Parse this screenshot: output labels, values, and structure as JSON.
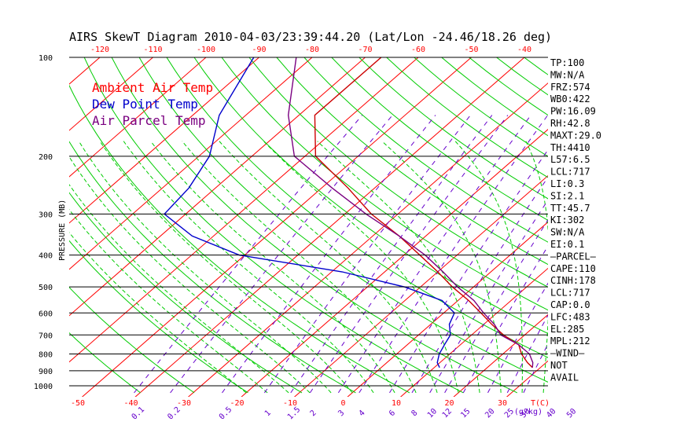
{
  "chart_data": {
    "type": "skewt",
    "title": "AIRS SkewT Diagram 2010-04-03/23:39:44.20 (Lat/Lon -24.46/18.26 deg)",
    "ylabel": "PRESSURE (MB)",
    "x_unit": "T(C)",
    "mixing_ratio_unit": "(g/kg)",
    "pressure_levels": [
      100,
      200,
      300,
      400,
      500,
      600,
      700,
      800,
      900,
      1000
    ],
    "ylim": [
      1000,
      100
    ],
    "top_temp_ticks": [
      -120,
      -110,
      -100,
      -90,
      -80,
      -70,
      -60,
      -50,
      -40
    ],
    "bottom_temp_ticks": [
      -50,
      -40,
      -30,
      -20,
      -10,
      0,
      10,
      20,
      30
    ],
    "mixing_ratio_labels": [
      "0.1",
      "0.2",
      "0.5",
      "1",
      "1.5",
      "2",
      "3",
      "4",
      "6",
      "8",
      "10",
      "12",
      "15",
      "20",
      "25",
      "30",
      "40",
      "50"
    ],
    "mixing_ratio_values": [
      0.1,
      0.2,
      0.5,
      1,
      1.5,
      2,
      3,
      4,
      6,
      8,
      10,
      12,
      15,
      20,
      25,
      30,
      40,
      50
    ],
    "legend": [
      {
        "name": "Ambient Air Temp",
        "color": "#ff0000"
      },
      {
        "name": "Dew Point Temp",
        "color": "#0000cc"
      },
      {
        "name": "Air Parcel Temp",
        "color": "#7a0080"
      }
    ],
    "colors": {
      "isotherm": "#ff0000",
      "dry_adiabat": "#00cc00",
      "moist_adiabat": "#00cc00",
      "mixing_ratio": "#6600cc",
      "pressure_line": "#000000"
    },
    "series": [
      {
        "name": "Ambient Air Temp",
        "color": "#cc0000",
        "points": [
          [
            100,
            -67
          ],
          [
            150,
            -67
          ],
          [
            200,
            -58
          ],
          [
            250,
            -45
          ],
          [
            300,
            -35
          ],
          [
            350,
            -25
          ],
          [
            400,
            -17
          ],
          [
            450,
            -10
          ],
          [
            500,
            -4
          ],
          [
            550,
            2
          ],
          [
            600,
            7
          ],
          [
            650,
            11.5
          ],
          [
            700,
            16
          ],
          [
            750,
            21
          ],
          [
            800,
            23.5
          ],
          [
            850,
            26.5
          ],
          [
            880,
            28.5
          ]
        ]
      },
      {
        "name": "Dew Point Temp",
        "color": "#0000cc",
        "points": [
          [
            100,
            -91
          ],
          [
            150,
            -85
          ],
          [
            200,
            -78
          ],
          [
            250,
            -75
          ],
          [
            300,
            -74
          ],
          [
            350,
            -64
          ],
          [
            400,
            -51
          ],
          [
            450,
            -28
          ],
          [
            500,
            -13
          ],
          [
            550,
            -3
          ],
          [
            600,
            2
          ],
          [
            650,
            3.5
          ],
          [
            700,
            6
          ],
          [
            750,
            7
          ],
          [
            800,
            8
          ],
          [
            850,
            9.5
          ],
          [
            880,
            11
          ]
        ]
      },
      {
        "name": "Air Parcel Temp",
        "color": "#7a0080",
        "points": [
          [
            100,
            -83
          ],
          [
            150,
            -72
          ],
          [
            200,
            -62
          ],
          [
            250,
            -48
          ],
          [
            300,
            -36
          ],
          [
            350,
            -25
          ],
          [
            400,
            -16
          ],
          [
            450,
            -9
          ],
          [
            500,
            -3
          ],
          [
            550,
            3
          ],
          [
            600,
            7.5
          ],
          [
            650,
            12
          ],
          [
            700,
            15.5
          ],
          [
            750,
            21
          ],
          [
            800,
            25
          ],
          [
            850,
            27.5
          ],
          [
            880,
            28.5
          ]
        ]
      }
    ],
    "indices": [
      "TP:100",
      "MW:N/A",
      "FRZ:574",
      "WB0:422",
      "PW:16.09",
      "RH:42.8",
      "MAXT:29.0",
      "TH:4410",
      "L57:6.5",
      "LCL:717",
      "LI:0.3",
      "SI:2.1",
      "TT:45.7",
      "KI:302",
      "SW:N/A",
      "EI:0.1",
      "—PARCEL—",
      "CAPE:110",
      "CINH:178",
      "LCL:717",
      "CAP:0.0",
      "LFC:483",
      "EL:285",
      "MPL:212",
      "—WIND—",
      "NOT",
      "AVAIL"
    ]
  }
}
